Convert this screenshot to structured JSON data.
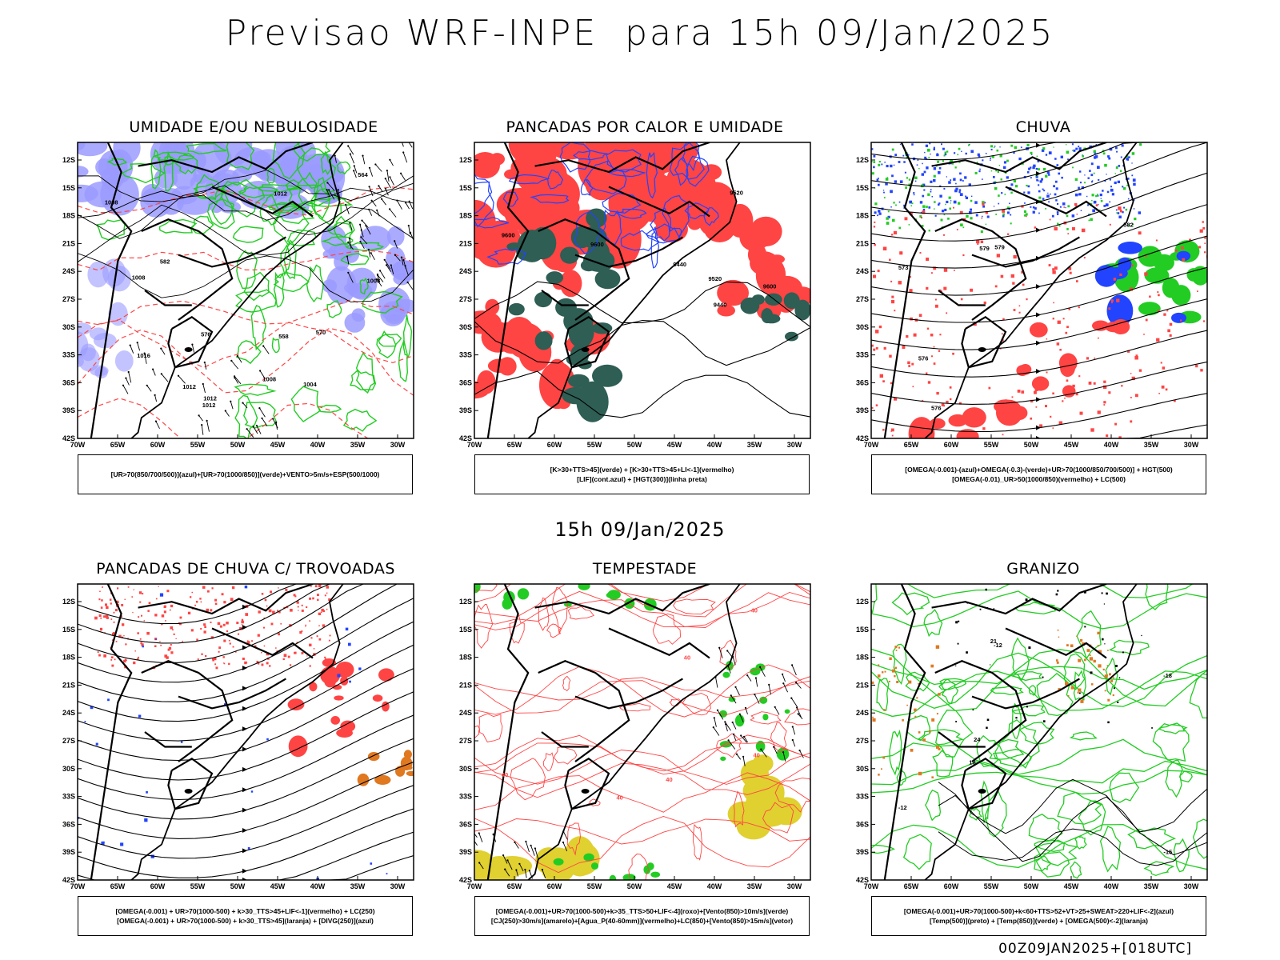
{
  "title": "Previsao WRF-INPE  para 15h 09/Jan/2025",
  "subtitle": "15h 09/Jan/2025",
  "footer": "00Z09JAN2025+[018UTC]",
  "axes": {
    "lat_labels": [
      "12S",
      "15S",
      "18S",
      "21S",
      "24S",
      "27S",
      "30S",
      "33S",
      "36S",
      "39S",
      "42S"
    ],
    "lon_labels": [
      "70W",
      "65W",
      "60W",
      "55W",
      "50W",
      "45W",
      "40W",
      "35W",
      "30W"
    ]
  },
  "colors": {
    "humid_blue": "#9b9bff",
    "green": "#22cc22",
    "red": "#ff4444",
    "dark_teal": "#2e5e54",
    "blue": "#2244ff",
    "yellow": "#e0d030",
    "orange": "#e07820"
  },
  "panels": [
    {
      "id": "umidade",
      "title": "UMIDADE E/OU NEBULOSIDADE",
      "legend": [
        "[UR>70(850/700/500)](azul)+[UR>70(1000/850)](verde)+VENTO>5m/s+ESP(500/1000)"
      ],
      "contour_labels": [
        "1008",
        "1008",
        "1012",
        "1004",
        "1008",
        "1012",
        "1008",
        "1012",
        "1016",
        "576",
        "570",
        "564",
        "558",
        "582",
        "1012"
      ]
    },
    {
      "id": "pancadas-calor",
      "title": "PANCADAS POR CALOR E UMIDADE",
      "legend": [
        "[K>30+TTS>45](verde) + [K>30+TTS>45+LI<-1](vermelho)",
        "[LIF](cont.azul) + [HGT(300)](linha preta)"
      ],
      "contour_labels": [
        "9600",
        "9600",
        "9520",
        "9440",
        "9440",
        "9520",
        "9600"
      ]
    },
    {
      "id": "chuva",
      "title": "CHUVA",
      "legend": [
        "[OMEGA(-0.001)-(azul)+OMEGA(-0.3)-(verde)+UR>70(1000/850/700/500)] + HGT(500)",
        "[OMEGA(-0.01)_UR>50(1000/850)(vermelho) + LC(500)"
      ],
      "contour_labels": [
        "573",
        "576",
        "579",
        "582",
        "579",
        "576"
      ]
    },
    {
      "id": "trovoadas",
      "title": "PANCADAS DE CHUVA C/ TROVOADAS",
      "legend": [
        "[OMEGA(-0.001) + UR>70(1000-500) + k>30_TTS>45+LIF<-1](vermelho) + LC(250)",
        "[OMEGA(-0.001) + UR>70(1000-500) + k>30_TTS>45](laranja) + [DIVG(250)](azul)"
      ],
      "contour_labels": []
    },
    {
      "id": "tempestade",
      "title": "TEMPESTADE",
      "legend": [
        "[OMEGA(-0.001)+UR>70(1000-500)+k>35_TTS>50+LIF<-4](roxo)+[Vento(850)>10m/s](verde)",
        "[CJ(250)>30m/s](amarelo)+[Agua_P(40-60mm)](vermelho)+LC(850)+[Vento(850)>15m/s](vetor)"
      ],
      "contour_labels": [
        "40",
        "40",
        "40",
        "40",
        "40",
        "40"
      ]
    },
    {
      "id": "granizo",
      "title": "GRANIZO",
      "legend": [
        "[OMEGA(-0.001)+UR>70(1000-500)+k<60+TTS>52+VT>25+SWEAT>220+LIF<-2](azul)",
        "[Temp(500)](preto) + [Temp(850)](verde) + [OMEGA(500)<-2](laranja)"
      ],
      "contour_labels": [
        "-12",
        "-12",
        "-15",
        "-18",
        "21",
        "24",
        "18"
      ]
    }
  ]
}
